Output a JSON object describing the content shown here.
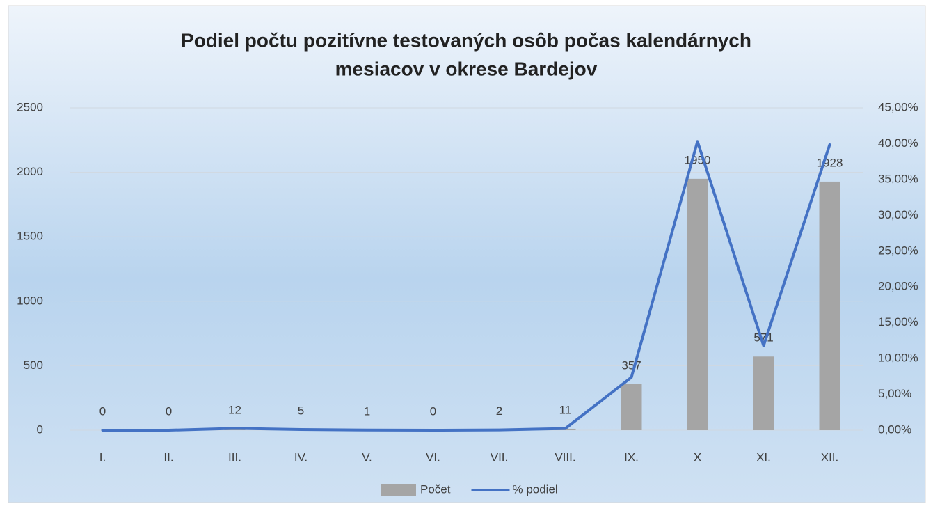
{
  "chart_data": {
    "type": "bar_line",
    "title": [
      "Podiel počtu pozitívne testovaných osôb počas kalendárnych",
      "mesiacov v okrese Bardejov"
    ],
    "categories": [
      "I.",
      "II.",
      "III.",
      "IV.",
      "V.",
      "VI.",
      "VII.",
      "VIII.",
      "IX.",
      "X",
      "XI.",
      "XII."
    ],
    "series": [
      {
        "name": "Počet",
        "type": "bar",
        "color": "#a5a5a5",
        "values": [
          0,
          0,
          12,
          5,
          1,
          0,
          2,
          11,
          357,
          1950,
          571,
          1928
        ]
      },
      {
        "name": "% podiel",
        "type": "line",
        "axis": "y2",
        "color": "#4472c4",
        "values": [
          0,
          0,
          0.25,
          0.1,
          0.02,
          0,
          0.04,
          0.23,
          7.38,
          40.31,
          11.8,
          39.86
        ]
      }
    ],
    "ylim": [
      0,
      2500
    ],
    "yticks": [
      0,
      500,
      1000,
      1500,
      2000,
      2500
    ],
    "y2lim": [
      0,
      45
    ],
    "y2ticks": [
      {
        "value": 0,
        "label": "0,00%"
      },
      {
        "value": 5,
        "label": "5,00%"
      },
      {
        "value": 10,
        "label": "10,00%"
      },
      {
        "value": 15,
        "label": "15,00%"
      },
      {
        "value": 20,
        "label": "20,00%"
      },
      {
        "value": 25,
        "label": "25,00%"
      },
      {
        "value": 30,
        "label": "30,00%"
      },
      {
        "value": 35,
        "label": "35,00%"
      },
      {
        "value": 40,
        "label": "40,00%"
      },
      {
        "value": 45,
        "label": "45,00%"
      }
    ],
    "grid": true,
    "legend": "bottom"
  }
}
